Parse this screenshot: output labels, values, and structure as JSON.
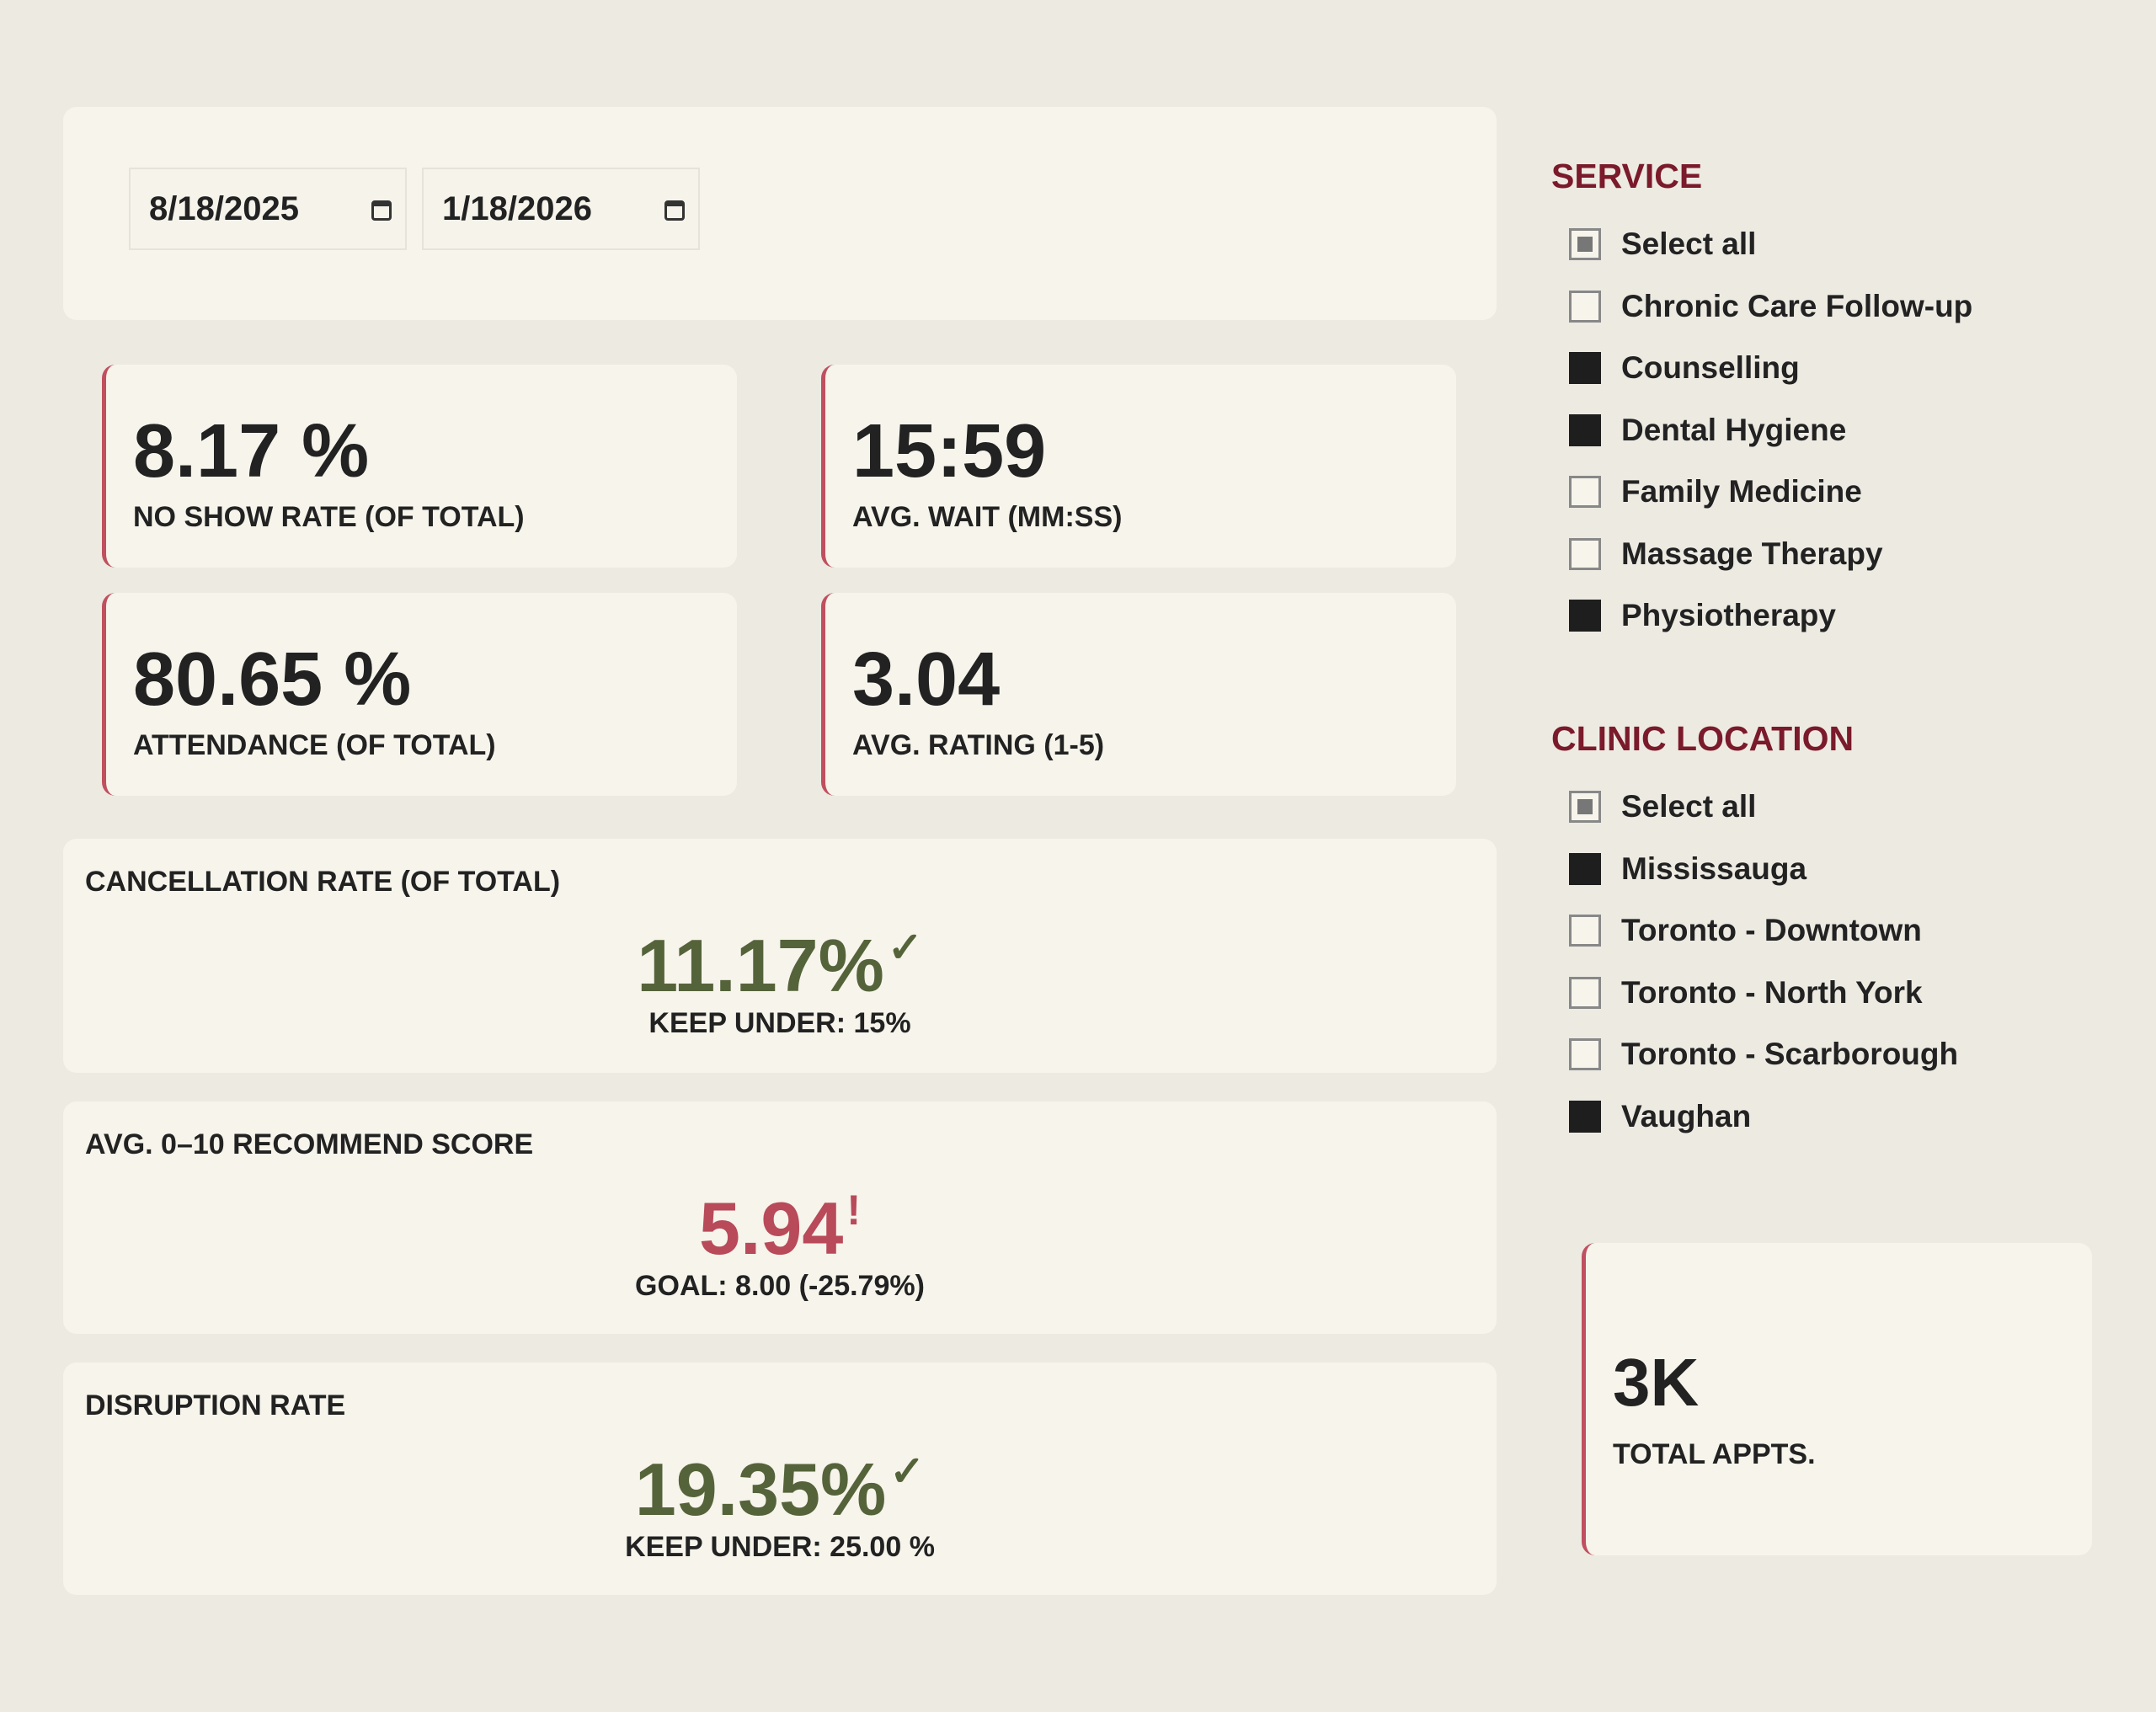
{
  "date_range": {
    "start": "8/18/2025",
    "end": "1/18/2026"
  },
  "kpis": [
    {
      "value": "8.17 %",
      "label": "NO SHOW RATE (OF TOTAL)"
    },
    {
      "value": "15:59",
      "label": "AVG. WAIT (MM:SS)"
    },
    {
      "value": "80.65 %",
      "label": "ATTENDANCE (OF TOTAL)"
    },
    {
      "value": "3.04",
      "label": "AVG. RATING (1-5)"
    }
  ],
  "goals": [
    {
      "title": "CANCELLATION RATE (OF TOTAL)",
      "value": "11.17%",
      "mark": "✓",
      "status": "good",
      "subtitle": "KEEP UNDER: 15%"
    },
    {
      "title": "AVG. 0–10 RECOMMEND SCORE",
      "value": "5.94",
      "mark": "!",
      "status": "bad",
      "subtitle": "GOAL: 8.00 (-25.79%)"
    },
    {
      "title": "DISRUPTION RATE",
      "value": "19.35%",
      "mark": "✓",
      "status": "good",
      "subtitle": "KEEP UNDER: 25.00 %"
    }
  ],
  "service": {
    "title": "SERVICE",
    "items": [
      {
        "label": "Select all",
        "state": "partial"
      },
      {
        "label": "Chronic Care Follow-up",
        "state": "off"
      },
      {
        "label": "Counselling",
        "state": "on"
      },
      {
        "label": "Dental Hygiene",
        "state": "on"
      },
      {
        "label": "Family Medicine",
        "state": "off"
      },
      {
        "label": "Massage Therapy",
        "state": "off"
      },
      {
        "label": "Physiotherapy",
        "state": "on"
      }
    ]
  },
  "location": {
    "title": "CLINIC LOCATION",
    "items": [
      {
        "label": "Select all",
        "state": "partial"
      },
      {
        "label": "Mississauga",
        "state": "on"
      },
      {
        "label": "Toronto - Downtown",
        "state": "off"
      },
      {
        "label": "Toronto - North York",
        "state": "off"
      },
      {
        "label": "Toronto - Scarborough",
        "state": "off"
      },
      {
        "label": "Vaughan",
        "state": "on"
      }
    ]
  },
  "total": {
    "value": "3K",
    "label": "TOTAL APPTS."
  },
  "colors": {
    "good": "#55633a",
    "bad": "#b84a5a",
    "accent": "#c0505f",
    "heading": "#7a1a2a"
  }
}
